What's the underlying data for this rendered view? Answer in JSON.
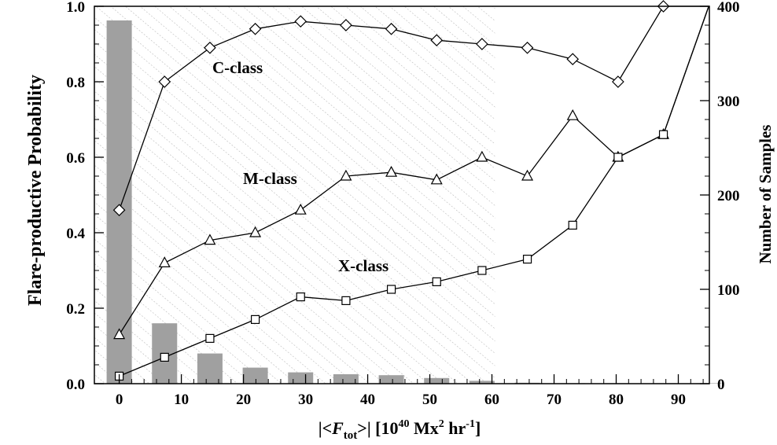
{
  "chart_data": {
    "type": "line",
    "x": [
      0,
      7.3,
      14.6,
      21.9,
      29.2,
      36.5,
      43.8,
      51.1,
      58.4,
      65.7,
      73.0,
      80.3,
      87.6,
      94.9
    ],
    "series": [
      {
        "name": "C-class",
        "marker": "diamond",
        "values": [
          0.46,
          0.8,
          0.89,
          0.94,
          0.96,
          0.95,
          0.94,
          0.91,
          0.9,
          0.89,
          0.86,
          0.8,
          1.0,
          1.0
        ]
      },
      {
        "name": "M-class",
        "marker": "triangle",
        "values": [
          0.13,
          0.32,
          0.38,
          0.4,
          0.46,
          0.55,
          0.56,
          0.54,
          0.6,
          0.55,
          0.71,
          0.6,
          0.66,
          1.0
        ]
      },
      {
        "name": "X-class",
        "marker": "square",
        "values": [
          0.02,
          0.07,
          0.12,
          0.17,
          0.23,
          0.22,
          0.25,
          0.27,
          0.3,
          0.33,
          0.42,
          0.6,
          0.66,
          1.0
        ]
      }
    ],
    "bars": {
      "axis": "right",
      "color": "#a0a0a0",
      "x": [
        0,
        7.3,
        14.6,
        21.9,
        29.2,
        36.5,
        43.8,
        51.1,
        58.4,
        65.7,
        73.0,
        80.3,
        87.6,
        94.9
      ],
      "values": [
        385,
        64,
        32,
        17,
        12,
        10,
        9,
        6,
        3,
        1,
        0.5,
        0.5,
        0.5,
        0.5
      ]
    },
    "xlabel": {
      "prefix": "|<",
      "var": "F",
      "sub": "tot",
      "suffix": ">|  [10",
      "exp1": "40",
      "mid": " Mx",
      "exp2": "2",
      "mid2": " hr",
      "exp3": "-1",
      "end": "]"
    },
    "ylabel": "Flare-productive Probability",
    "y2label": "Number of Samples",
    "xlim": [
      -4,
      95
    ],
    "ylim": [
      0,
      1.0
    ],
    "y2lim": [
      0,
      400
    ],
    "xticks": [
      0,
      10,
      20,
      30,
      40,
      50,
      60,
      70,
      80,
      90
    ],
    "yticks": [
      "0.0",
      "0.2",
      "0.4",
      "0.6",
      "0.8",
      "1.0"
    ],
    "y2ticks": [
      0,
      100,
      200,
      300,
      400
    ],
    "shaded_region": {
      "x": [
        -4,
        60.5
      ],
      "pattern": "diagonal-hatch"
    },
    "annotations": [
      "C-class",
      "M-class",
      "X-class"
    ],
    "grid": false,
    "legend": "none"
  }
}
